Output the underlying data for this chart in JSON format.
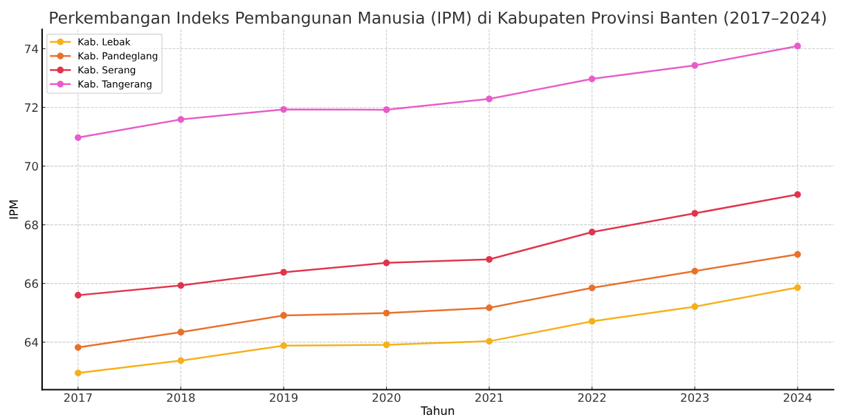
{
  "chart_data": {
    "type": "line",
    "title": "Perkembangan Indeks Pembangunan Manusia (IPM) di Kabupaten Provinsi Banten (2017–2024)",
    "xlabel": "Tahun",
    "ylabel": "IPM",
    "x": [
      2017,
      2018,
      2019,
      2020,
      2021,
      2022,
      2023,
      2024
    ],
    "series": [
      {
        "name": "Kab. Lebak",
        "color": "#f5b01a",
        "values": [
          62.95,
          63.37,
          63.88,
          63.91,
          64.03,
          64.71,
          65.21,
          65.86
        ]
      },
      {
        "name": "Kab. Pandeglang",
        "color": "#e8702a",
        "values": [
          63.82,
          64.34,
          64.91,
          64.99,
          65.17,
          65.85,
          66.42,
          66.99
        ]
      },
      {
        "name": "Kab. Serang",
        "color": "#e0344e",
        "values": [
          65.6,
          65.93,
          66.38,
          66.7,
          66.82,
          67.75,
          68.39,
          69.03
        ]
      },
      {
        "name": "Kab. Tangerang",
        "color": "#e85cc8",
        "values": [
          70.97,
          71.59,
          71.93,
          71.92,
          72.29,
          72.97,
          73.43,
          74.09
        ]
      }
    ],
    "xlim": [
      2016.65,
      2024.35
    ],
    "ylim": [
      62.38,
      74.66
    ],
    "xticks": [
      2017,
      2018,
      2019,
      2020,
      2021,
      2022,
      2023,
      2024
    ],
    "yticks": [
      64,
      66,
      68,
      70,
      72,
      74
    ],
    "grid": true,
    "legend": "top left",
    "marker": "circle",
    "line_style": "solid"
  }
}
